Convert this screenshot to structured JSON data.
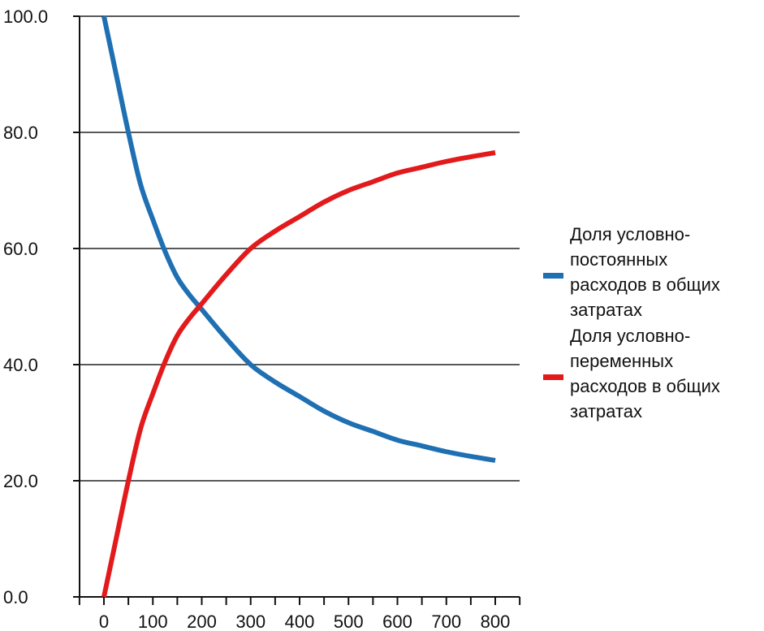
{
  "chart_data": {
    "type": "line",
    "x": [
      0,
      25,
      50,
      75,
      100,
      125,
      150,
      175,
      200,
      250,
      300,
      350,
      400,
      450,
      500,
      550,
      600,
      650,
      700,
      750,
      800
    ],
    "series": [
      {
        "name": "Доля условно-постоянных расходов в общих затратах",
        "legend_lines": [
          "Доля условно-",
          "постоянных",
          "расходов в общих",
          "затратах"
        ],
        "color": "#1f6fb3",
        "values": [
          100.0,
          90.0,
          80.0,
          71.0,
          65.0,
          59.5,
          55.0,
          52.0,
          49.5,
          44.5,
          40.0,
          37.0,
          34.5,
          32.0,
          30.0,
          28.5,
          27.0,
          26.0,
          25.0,
          24.2,
          23.5
        ]
      },
      {
        "name": "Доля условно-переменных расходов в общих затратах",
        "legend_lines": [
          "Доля условно-",
          "переменных",
          "расходов в общих",
          "затратах"
        ],
        "color": "#e31a1c",
        "values": [
          0.0,
          10.0,
          20.0,
          29.0,
          35.0,
          40.5,
          45.0,
          48.0,
          50.5,
          55.5,
          60.0,
          63.0,
          65.5,
          68.0,
          70.0,
          71.5,
          73.0,
          74.0,
          75.0,
          75.8,
          76.5
        ]
      }
    ],
    "xticks": [
      "0",
      "100",
      "200",
      "300",
      "400",
      "500",
      "600",
      "700",
      "800"
    ],
    "yticks": [
      "0.0",
      "20.0",
      "40.0",
      "60.0",
      "80.0",
      "100.0"
    ],
    "xlim": [
      -100,
      850
    ],
    "ylim": [
      0,
      100
    ],
    "grid": "horizontal",
    "legend_position": "right",
    "title": "",
    "xlabel": "",
    "ylabel": ""
  }
}
